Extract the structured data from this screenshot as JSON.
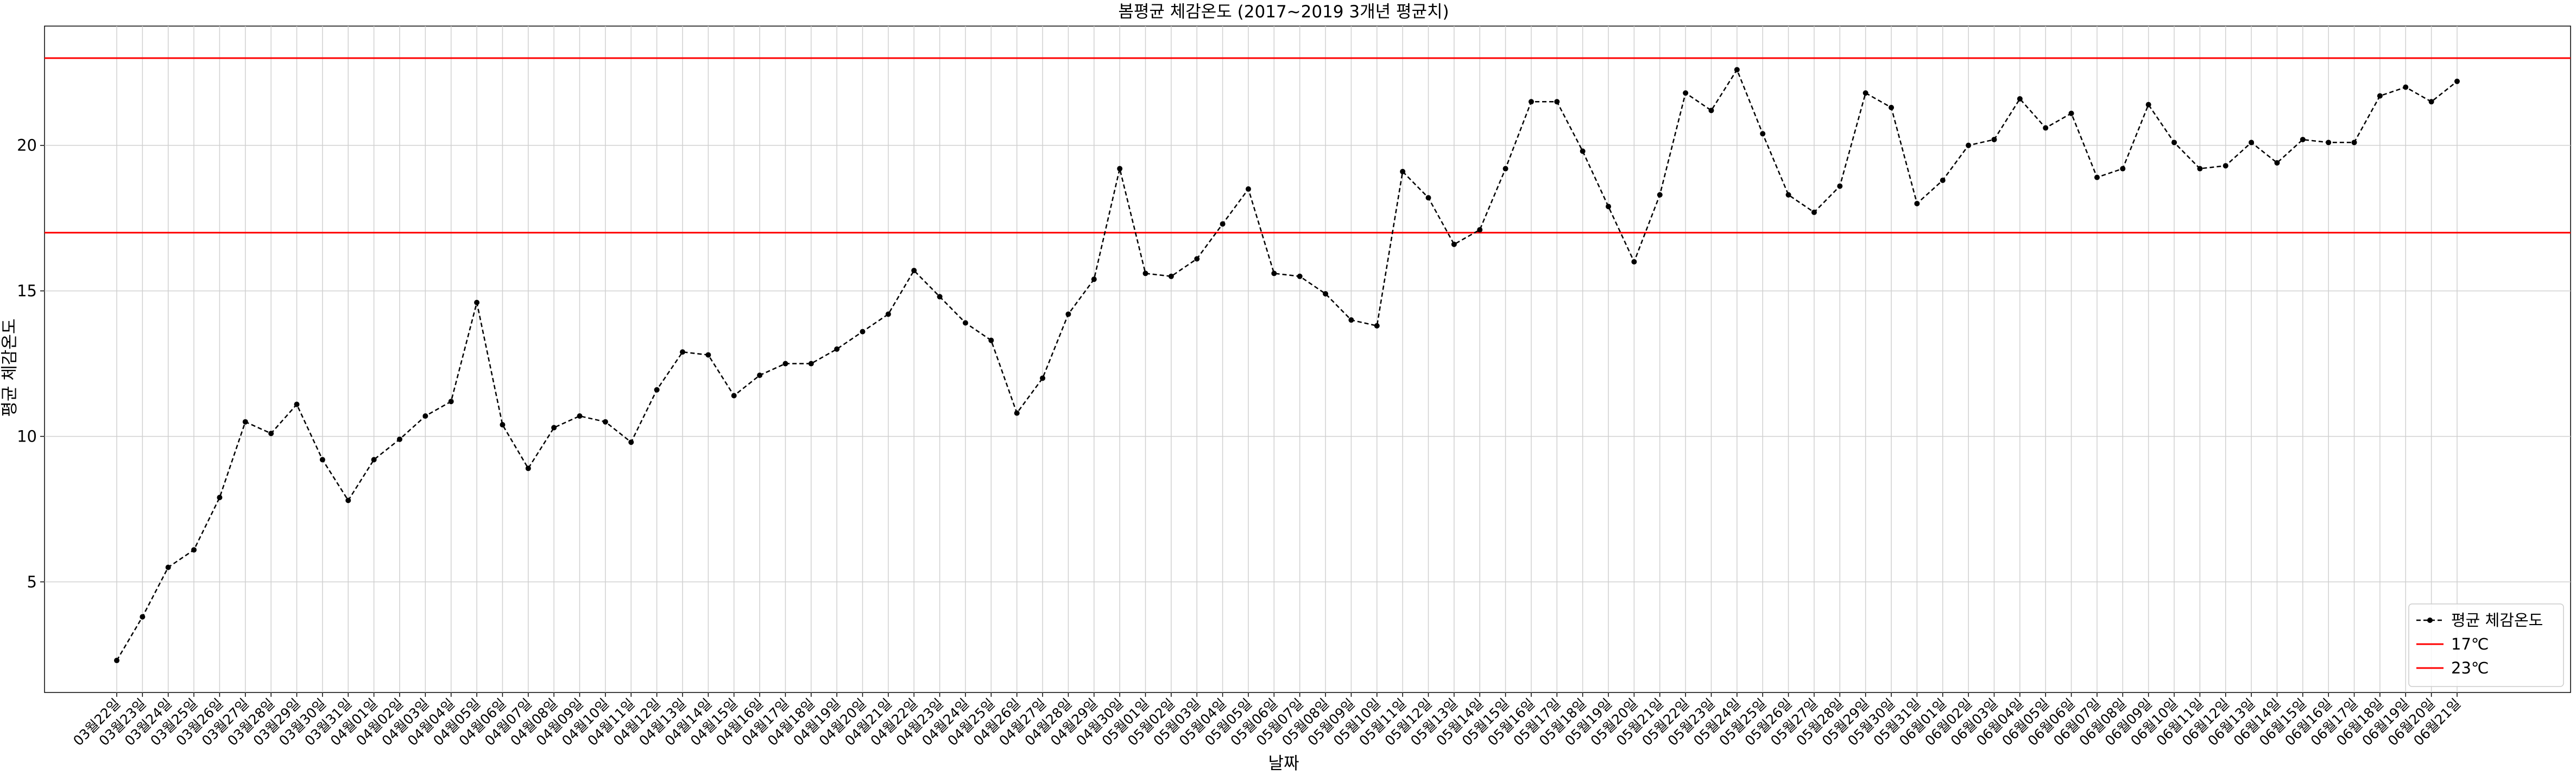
{
  "chart_data": {
    "type": "line",
    "title": "봄평균 체감온도 (2017~2019 3개년 평균치)",
    "xlabel": "날짜",
    "ylabel": "평균 체감온도",
    "ylim": [
      1.2,
      24.1
    ],
    "yticks": [
      5,
      10,
      15,
      20
    ],
    "grid": true,
    "legend_position": "lower-right",
    "categories": [
      "03월22일",
      "03월23일",
      "03월24일",
      "03월25일",
      "03월26일",
      "03월27일",
      "03월28일",
      "03월29일",
      "03월30일",
      "03월31일",
      "04월01일",
      "04월02일",
      "04월03일",
      "04월04일",
      "04월05일",
      "04월06일",
      "04월07일",
      "04월08일",
      "04월09일",
      "04월10일",
      "04월11일",
      "04월12일",
      "04월13일",
      "04월14일",
      "04월15일",
      "04월16일",
      "04월17일",
      "04월18일",
      "04월19일",
      "04월20일",
      "04월21일",
      "04월22일",
      "04월23일",
      "04월24일",
      "04월25일",
      "04월26일",
      "04월27일",
      "04월28일",
      "04월29일",
      "04월30일",
      "05월01일",
      "05월02일",
      "05월03일",
      "05월04일",
      "05월05일",
      "05월06일",
      "05월07일",
      "05월08일",
      "05월09일",
      "05월10일",
      "05월11일",
      "05월12일",
      "05월13일",
      "05월14일",
      "05월15일",
      "05월16일",
      "05월17일",
      "05월18일",
      "05월19일",
      "05월20일",
      "05월21일",
      "05월22일",
      "05월23일",
      "05월24일",
      "05월25일",
      "05월26일",
      "05월27일",
      "05월28일",
      "05월29일",
      "05월30일",
      "05월31일",
      "06월01일",
      "06월02일",
      "06월03일",
      "06월04일",
      "06월05일",
      "06월06일",
      "06월07일",
      "06월08일",
      "06월09일",
      "06월10일",
      "06월11일",
      "06월12일",
      "06월13일",
      "06월14일",
      "06월15일",
      "06월16일",
      "06월17일",
      "06월18일",
      "06월19일",
      "06월20일",
      "06월21일"
    ],
    "series": [
      {
        "name": "평균 체감온도",
        "color": "#000000",
        "style": "dashed",
        "marker": "circle",
        "values": [
          2.3,
          3.8,
          5.5,
          6.1,
          7.9,
          10.5,
          10.1,
          11.1,
          9.2,
          7.8,
          9.2,
          9.9,
          10.7,
          11.2,
          14.6,
          10.4,
          8.9,
          10.3,
          10.7,
          10.5,
          9.8,
          11.6,
          12.9,
          12.8,
          11.4,
          12.1,
          12.5,
          12.5,
          13.0,
          13.6,
          14.2,
          15.7,
          14.8,
          13.9,
          13.3,
          10.8,
          12.0,
          14.2,
          15.4,
          19.2,
          15.6,
          15.5,
          16.1,
          17.3,
          18.5,
          15.6,
          15.5,
          14.9,
          14.0,
          13.8,
          19.1,
          18.2,
          16.6,
          17.1,
          19.2,
          21.5,
          21.5,
          19.8,
          17.9,
          16.0,
          18.3,
          21.8,
          21.2,
          22.6,
          20.4,
          18.3,
          17.7,
          18.6,
          21.8,
          21.3,
          18.0,
          18.8,
          20.0,
          20.2,
          21.6,
          20.6,
          21.1,
          18.9,
          19.2,
          21.4,
          20.1,
          19.2,
          19.3,
          20.1,
          19.4,
          20.2,
          20.1,
          20.1,
          21.7,
          22.0,
          21.5,
          22.2
        ]
      },
      {
        "name": "17℃",
        "color": "#ff0000",
        "style": "solid",
        "constant": 17
      },
      {
        "name": "23℃",
        "color": "#ff0000",
        "style": "solid",
        "constant": 23
      }
    ]
  }
}
